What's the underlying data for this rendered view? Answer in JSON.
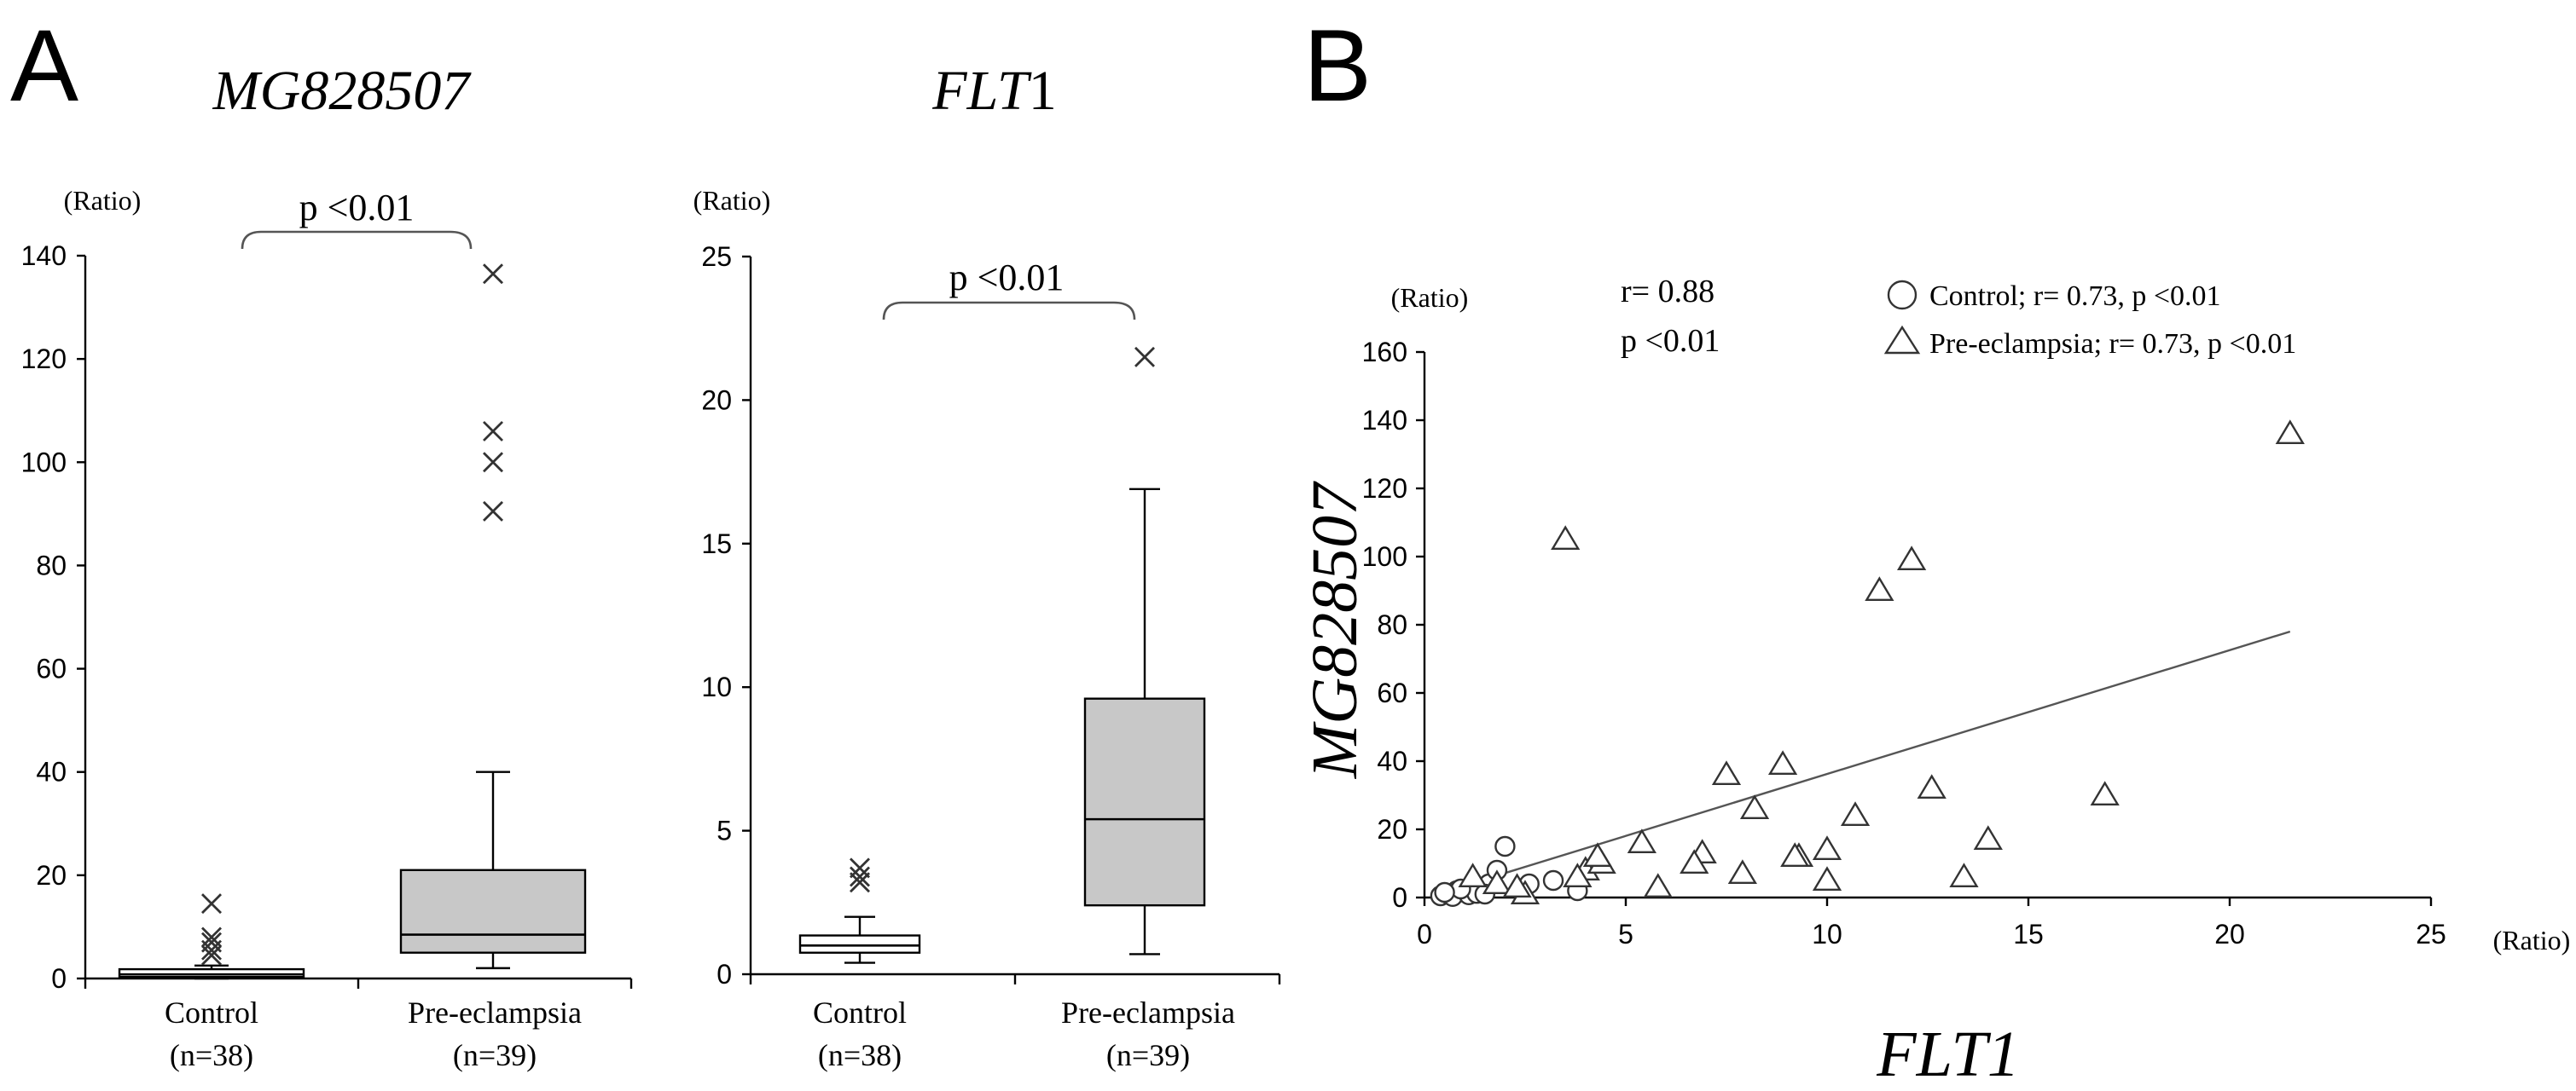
{
  "panels": {
    "a_label": "A",
    "b_label": "B"
  },
  "chart_data": [
    {
      "type": "box",
      "title": "MG828507",
      "ylabel": "(Ratio)",
      "ylim": [
        0,
        140
      ],
      "yticks": [
        0,
        20,
        40,
        60,
        80,
        100,
        120,
        140
      ],
      "annotation": "p <0.01",
      "groups": [
        {
          "name": "Control",
          "n_label": "(n=38)",
          "fill": "#ffffff",
          "min": 0,
          "q1": 0.3,
          "median": 0.8,
          "q3": 1.8,
          "max": 2.5,
          "outliers": [
            4.5,
            5.5,
            7.0,
            8.0,
            14.5
          ]
        },
        {
          "name": "Pre-eclampsia",
          "n_label": "(n=39)",
          "fill": "#c8c8c8",
          "min": 2,
          "q1": 5,
          "median": 8.5,
          "q3": 21,
          "max": 40,
          "outliers": [
            90.5,
            100,
            106,
            136.5
          ]
        }
      ]
    },
    {
      "type": "box",
      "title": "FLT1",
      "title_italic_part": "FLT",
      "title_plain_part": "1",
      "ylabel": "(Ratio)",
      "ylim": [
        0,
        25
      ],
      "yticks": [
        0,
        5,
        10,
        15,
        20,
        25
      ],
      "annotation": "p <0.01",
      "groups": [
        {
          "name": "Control",
          "n_label": "(n=38)",
          "fill": "#ffffff",
          "min": 0.4,
          "q1": 0.75,
          "median": 1.0,
          "q3": 1.35,
          "max": 2.0,
          "outliers": [
            3.2,
            3.4,
            3.7
          ]
        },
        {
          "name": "Pre-eclampsia",
          "n_label": "(n=39)",
          "fill": "#c8c8c8",
          "min": 0.7,
          "q1": 2.4,
          "median": 5.4,
          "q3": 9.6,
          "max": 16.9,
          "outliers": [
            21.5
          ]
        }
      ]
    },
    {
      "type": "scatter",
      "xlabel": "FLT1",
      "ylabel": "MG828507",
      "x_unit": "(Ratio)",
      "y_unit": "(Ratio)",
      "xlim": [
        0,
        25
      ],
      "ylim": [
        0,
        160
      ],
      "xticks": [
        0,
        5,
        10,
        15,
        20,
        25
      ],
      "yticks": [
        0,
        20,
        40,
        60,
        80,
        100,
        120,
        140,
        160
      ],
      "stats_r": "r= 0.88",
      "stats_p": "p <0.01",
      "fit_line": {
        "x": [
          0.3,
          21.5
        ],
        "y": [
          1,
          78
        ]
      },
      "legend": [
        {
          "marker": "circle",
          "label": "Control; r= 0.73,  p <0.01"
        },
        {
          "marker": "triangle",
          "label": "Pre-eclampsia; r= 0.73,  p <0.01"
        }
      ],
      "series": [
        {
          "name": "Control",
          "marker": "circle",
          "points": [
            [
              0.4,
              0.5
            ],
            [
              0.6,
              1
            ],
            [
              0.8,
              2
            ],
            [
              1.0,
              1.5
            ],
            [
              1.2,
              3
            ],
            [
              1.4,
              2
            ],
            [
              1.6,
              4
            ],
            [
              1.8,
              8
            ],
            [
              2.0,
              15
            ],
            [
              0.7,
              0.3
            ],
            [
              1.1,
              0.8
            ],
            [
              1.3,
              1.2
            ],
            [
              0.9,
              2.5
            ],
            [
              3.2,
              5
            ],
            [
              3.8,
              2
            ],
            [
              2.6,
              4
            ],
            [
              1.5,
              1
            ],
            [
              0.5,
              1.5
            ]
          ]
        },
        {
          "name": "Pre-eclampsia",
          "marker": "triangle",
          "points": [
            [
              21.5,
              136
            ],
            [
              3.5,
              105
            ],
            [
              12.1,
              99
            ],
            [
              11.3,
              90
            ],
            [
              8.9,
              39
            ],
            [
              7.5,
              36
            ],
            [
              12.6,
              32
            ],
            [
              16.9,
              30
            ],
            [
              8.2,
              26
            ],
            [
              10.7,
              24
            ],
            [
              14.0,
              17
            ],
            [
              5.4,
              16
            ],
            [
              9.3,
              12
            ],
            [
              6.9,
              13
            ],
            [
              10.0,
              14
            ],
            [
              13.4,
              6
            ],
            [
              10.0,
              5
            ],
            [
              7.9,
              7
            ],
            [
              5.8,
              3
            ],
            [
              2.5,
              1
            ],
            [
              4.0,
              8
            ],
            [
              4.4,
              10
            ],
            [
              3.8,
              6
            ],
            [
              4.3,
              12
            ],
            [
              6.7,
              10
            ],
            [
              9.2,
              12
            ],
            [
              1.2,
              6
            ],
            [
              1.8,
              4
            ],
            [
              2.3,
              3
            ]
          ]
        }
      ]
    }
  ]
}
